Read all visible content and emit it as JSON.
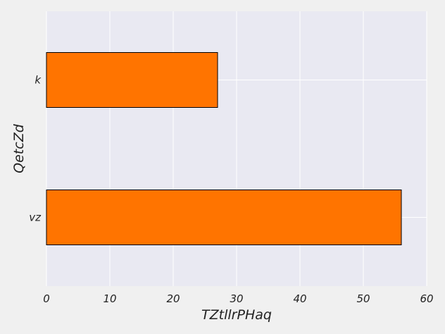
{
  "chart_data": {
    "type": "bar",
    "orientation": "horizontal",
    "categories": [
      "vz",
      "k"
    ],
    "values": [
      56,
      27
    ],
    "xlabel": "TZtllrPHaq",
    "ylabel": "QetcZd",
    "xlim": [
      0,
      60
    ],
    "xticks": [
      0,
      10,
      20,
      30,
      40,
      50,
      60
    ],
    "xtick_labels": [
      "0",
      "10",
      "20",
      "30",
      "40",
      "50",
      "60"
    ],
    "grid": true,
    "bar_color": "#ff7400",
    "bar_edge_color": "#000000",
    "plot_background": "#e9e9f2",
    "figure_background": "#f0f0f0"
  }
}
